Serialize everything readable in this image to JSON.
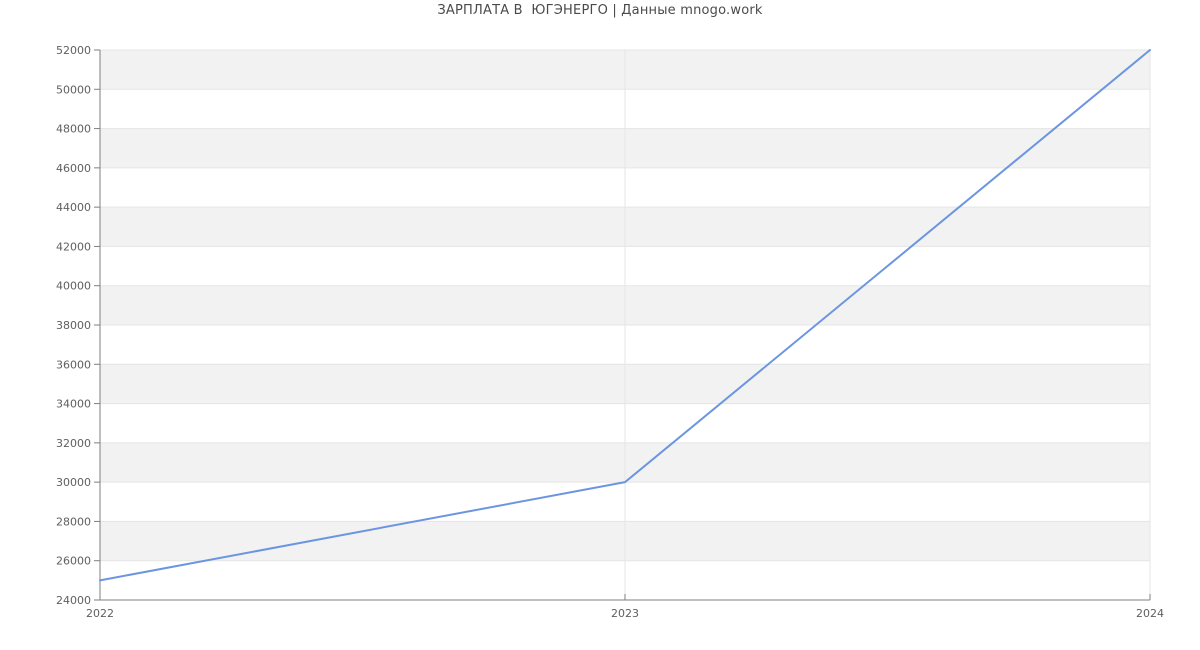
{
  "page": {
    "background": "#ffffff"
  },
  "chart_data": {
    "type": "line",
    "title": "ЗАРПЛАТА В  ЮГЭНЕРГО | Данные mnogo.work",
    "x": [
      "2022",
      "2023",
      "2024"
    ],
    "values": [
      25000,
      30000,
      52000
    ],
    "xlabel": "",
    "ylabel": "",
    "ylim": [
      24000,
      52000
    ],
    "ytick_step": 2000,
    "ytick_labels": [
      "24000",
      "26000",
      "28000",
      "30000",
      "32000",
      "34000",
      "36000",
      "38000",
      "40000",
      "42000",
      "44000",
      "46000",
      "48000",
      "50000",
      "52000"
    ],
    "grid": true,
    "legend_position": "none",
    "plot_style": "alternating horizontal bands, gray top band",
    "colors": {
      "line": "#6c95e1",
      "band": "#f2f2f2",
      "gridline": "#e5e5e5",
      "axis": "#7f7f7f",
      "tick_text": "#5f5f5f",
      "title_text": "#4a4a4a",
      "background": "#ffffff"
    }
  }
}
